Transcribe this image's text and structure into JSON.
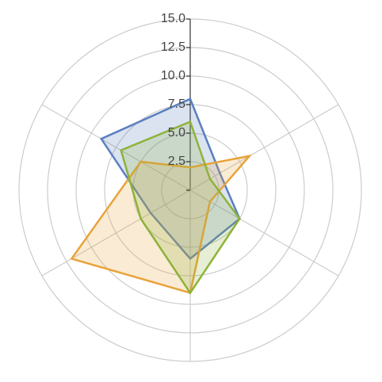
{
  "chart_data": {
    "type": "radar",
    "ylim": [
      0,
      15
    ],
    "yticks": [
      {
        "value": 0,
        "label": ""
      },
      2.5,
      {
        "value": 5,
        "label": "5.0"
      },
      7.5,
      {
        "value": 10,
        "label": "10.0"
      },
      12.5,
      {
        "value": 15,
        "label": "15.0"
      }
    ],
    "series": [
      {
        "color": "#5b7fc0",
        "values": [
          8,
          3,
          5,
          6,
          4,
          9
        ]
      },
      {
        "color": "#e8a33a",
        "values": [
          2,
          6,
          2,
          9,
          12,
          5
        ]
      },
      {
        "color": "#8db33a",
        "values": [
          6,
          2,
          5,
          9,
          5,
          7
        ]
      }
    ]
  }
}
